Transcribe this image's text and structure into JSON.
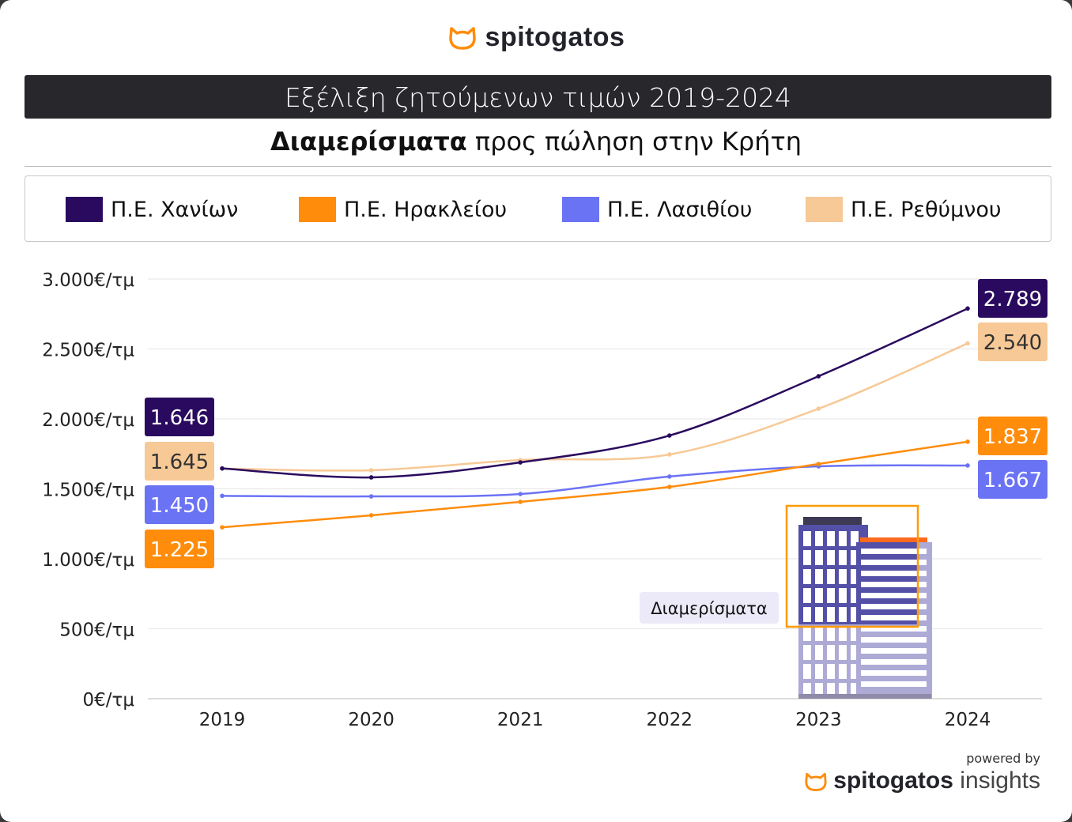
{
  "brand": "spitogatos",
  "title": "Εξέλιξη ζητούμενων τιμών 2019-2024",
  "subtitle_bold": "Διαμερίσματα",
  "subtitle_rest": " προς πώληση στην Κρήτη",
  "badge": "Διαμερίσματα",
  "footer": {
    "powered_by": "powered by",
    "brand": "spitogatos",
    "product": "insights"
  },
  "colors": {
    "chania": "#2a0a5e",
    "heraklion": "#ff8c0a",
    "lasithi": "#6b73f5",
    "rethymno": "#f7c996"
  },
  "chart_data": {
    "type": "line",
    "title": "Εξέλιξη ζητούμενων τιμών 2019-2024",
    "x": [
      "2019",
      "2020",
      "2021",
      "2022",
      "2023",
      "2024"
    ],
    "ylim": [
      0,
      3000
    ],
    "yticks": [
      "0€/τμ",
      "500€/τμ",
      "1.000€/τμ",
      "1.500€/τμ",
      "2.000€/τμ",
      "2.500€/τμ",
      "3.000€/τμ"
    ],
    "ytick_values": [
      0,
      500,
      1000,
      1500,
      2000,
      2500,
      3000
    ],
    "grid": true,
    "legend_placement": "top",
    "series": [
      {
        "name": "Π.Ε. Χανίων",
        "key": "chania",
        "values": [
          1646,
          1582,
          1689,
          1881,
          2305,
          2789
        ],
        "start_label": "1.646",
        "end_label": "2.789"
      },
      {
        "name": "Π.Ε. Ηρακλείου",
        "key": "heraklion",
        "values": [
          1225,
          1311,
          1407,
          1514,
          1678,
          1837
        ],
        "start_label": "1.225",
        "end_label": "1.837"
      },
      {
        "name": "Π.Ε. Λασιθίου",
        "key": "lasithi",
        "values": [
          1450,
          1446,
          1463,
          1588,
          1661,
          1667
        ],
        "start_label": "1.450",
        "end_label": "1.667"
      },
      {
        "name": "Π.Ε. Ρεθύμνου",
        "key": "rethymno",
        "values": [
          1645,
          1633,
          1706,
          1746,
          2073,
          2540
        ],
        "start_label": "1.645",
        "end_label": "2.540"
      }
    ]
  }
}
